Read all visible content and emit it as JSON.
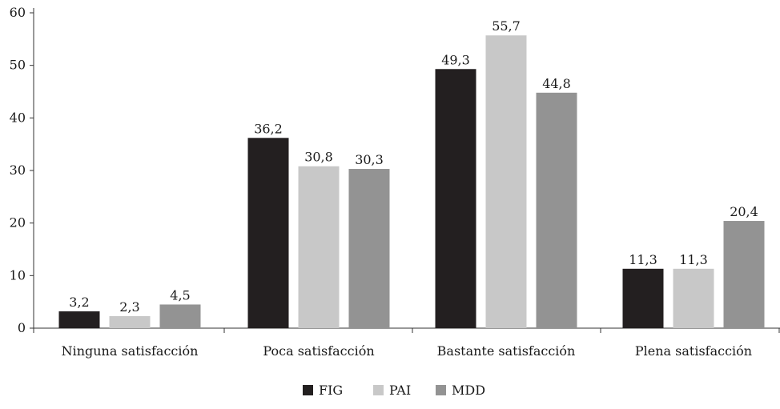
{
  "chart_data": {
    "type": "bar",
    "categories": [
      "Ninguna satisfacción",
      "Poca satisfacción",
      "Bastante satisfacción",
      "Plena satisfacción"
    ],
    "series": [
      {
        "name": "FIG",
        "color": "#231f20",
        "values": [
          3.2,
          36.2,
          49.3,
          11.3
        ],
        "labels": [
          "3,2",
          "36,2",
          "49,3",
          "11,3"
        ]
      },
      {
        "name": "PAI",
        "color": "#c8c8c8",
        "values": [
          2.3,
          30.8,
          55.7,
          11.3
        ],
        "labels": [
          "2,3",
          "30,8",
          "55,7",
          "11,3"
        ]
      },
      {
        "name": "MDD",
        "color": "#939393",
        "values": [
          4.5,
          30.3,
          44.8,
          20.4
        ],
        "labels": [
          "4,5",
          "30,3",
          "44,8",
          "20,4"
        ]
      }
    ],
    "ylim": [
      0,
      60
    ],
    "yticks": [
      0,
      10,
      20,
      30,
      40,
      50,
      60
    ],
    "xlabel": "",
    "ylabel": "",
    "grid": false,
    "legend_position": "bottom-center"
  }
}
